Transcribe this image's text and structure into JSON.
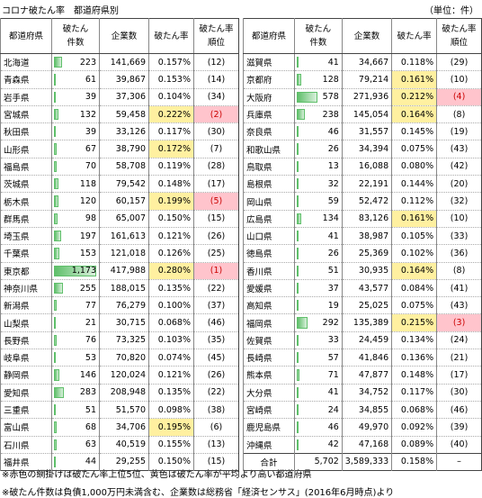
{
  "header": {
    "title": "コロナ破たん率　都道府県別",
    "unit": "（単位：件）"
  },
  "columns": [
    "都道府県",
    "破たん\n件数",
    "企業数",
    "破たん率",
    "破たん率\n順位"
  ],
  "tables": [
    {
      "rows": [
        [
          "北海道",
          "223",
          "141,669",
          "0.157%",
          "(12)"
        ],
        [
          "青森県",
          "61",
          "39,867",
          "0.153%",
          "(14)"
        ],
        [
          "岩手県",
          "39",
          "37,306",
          "0.104%",
          "(34)"
        ],
        [
          "宮城県",
          "132",
          "59,458",
          "0.222%",
          "(2)"
        ],
        [
          "秋田県",
          "39",
          "33,126",
          "0.117%",
          "(30)"
        ],
        [
          "山形県",
          "67",
          "38,790",
          "0.172%",
          "(7)"
        ],
        [
          "福島県",
          "70",
          "58,708",
          "0.119%",
          "(28)"
        ],
        [
          "茨城県",
          "118",
          "79,542",
          "0.148%",
          "(17)"
        ],
        [
          "栃木県",
          "120",
          "60,157",
          "0.199%",
          "(5)"
        ],
        [
          "群馬県",
          "98",
          "65,007",
          "0.150%",
          "(15)"
        ],
        [
          "埼玉県",
          "197",
          "161,613",
          "0.121%",
          "(26)"
        ],
        [
          "千葉県",
          "153",
          "121,018",
          "0.126%",
          "(25)"
        ],
        [
          "東京都",
          "1,173",
          "417,988",
          "0.280%",
          "(1)"
        ],
        [
          "神奈川県",
          "255",
          "188,015",
          "0.135%",
          "(22)"
        ],
        [
          "新潟県",
          "77",
          "76,279",
          "0.100%",
          "(37)"
        ],
        [
          "山梨県",
          "21",
          "30,715",
          "0.068%",
          "(46)"
        ],
        [
          "長野県",
          "76",
          "73,325",
          "0.103%",
          "(35)"
        ],
        [
          "岐阜県",
          "53",
          "70,820",
          "0.074%",
          "(45)"
        ],
        [
          "静岡県",
          "146",
          "120,024",
          "0.121%",
          "(26)"
        ],
        [
          "愛知県",
          "283",
          "208,948",
          "0.135%",
          "(22)"
        ],
        [
          "三重県",
          "51",
          "51,570",
          "0.098%",
          "(38)"
        ],
        [
          "富山県",
          "68",
          "34,706",
          "0.195%",
          "(6)"
        ],
        [
          "石川県",
          "63",
          "40,519",
          "0.155%",
          "(13)"
        ],
        [
          "福井県",
          "44",
          "29,255",
          "0.150%",
          "(15)"
        ]
      ]
    },
    {
      "rows": [
        [
          "滋賀県",
          "41",
          "34,667",
          "0.118%",
          "(29)"
        ],
        [
          "京都府",
          "128",
          "79,214",
          "0.161%",
          "(10)"
        ],
        [
          "大阪府",
          "578",
          "271,936",
          "0.212%",
          "(4)"
        ],
        [
          "兵庫県",
          "238",
          "145,054",
          "0.164%",
          "(8)"
        ],
        [
          "奈良県",
          "46",
          "31,557",
          "0.145%",
          "(19)"
        ],
        [
          "和歌山県",
          "26",
          "34,394",
          "0.075%",
          "(43)"
        ],
        [
          "鳥取県",
          "13",
          "16,088",
          "0.080%",
          "(42)"
        ],
        [
          "島根県",
          "32",
          "22,191",
          "0.144%",
          "(20)"
        ],
        [
          "岡山県",
          "59",
          "52,472",
          "0.112%",
          "(32)"
        ],
        [
          "広島県",
          "134",
          "83,126",
          "0.161%",
          "(10)"
        ],
        [
          "山口県",
          "41",
          "38,987",
          "0.105%",
          "(33)"
        ],
        [
          "徳島県",
          "26",
          "25,369",
          "0.102%",
          "(36)"
        ],
        [
          "香川県",
          "51",
          "30,935",
          "0.164%",
          "(8)"
        ],
        [
          "愛媛県",
          "37",
          "43,577",
          "0.084%",
          "(41)"
        ],
        [
          "高知県",
          "19",
          "25,025",
          "0.075%",
          "(43)"
        ],
        [
          "福岡県",
          "292",
          "135,389",
          "0.215%",
          "(3)"
        ],
        [
          "佐賀県",
          "33",
          "24,459",
          "0.134%",
          "(24)"
        ],
        [
          "長崎県",
          "57",
          "41,846",
          "0.136%",
          "(21)"
        ],
        [
          "熊本県",
          "71",
          "47,877",
          "0.148%",
          "(17)"
        ],
        [
          "大分県",
          "41",
          "34,752",
          "0.117%",
          "(30)"
        ],
        [
          "宮崎県",
          "24",
          "34,855",
          "0.068%",
          "(46)"
        ],
        [
          "鹿児島県",
          "46",
          "49,970",
          "0.092%",
          "(39)"
        ],
        [
          "沖縄県",
          "42",
          "47,168",
          "0.089%",
          "(40)"
        ]
      ],
      "total": [
        "合計",
        "5,702",
        "3,589,333",
        "0.158%",
        "–"
      ]
    }
  ],
  "notes": [
    "※赤色の網掛けは破たん率上位5位、黄色は破たん率が平均より高い都道府県",
    "※破たん件数は負債1,000万円未満含む、企業数は総務省「経済センサス」(2016年6月時点)より"
  ]
}
